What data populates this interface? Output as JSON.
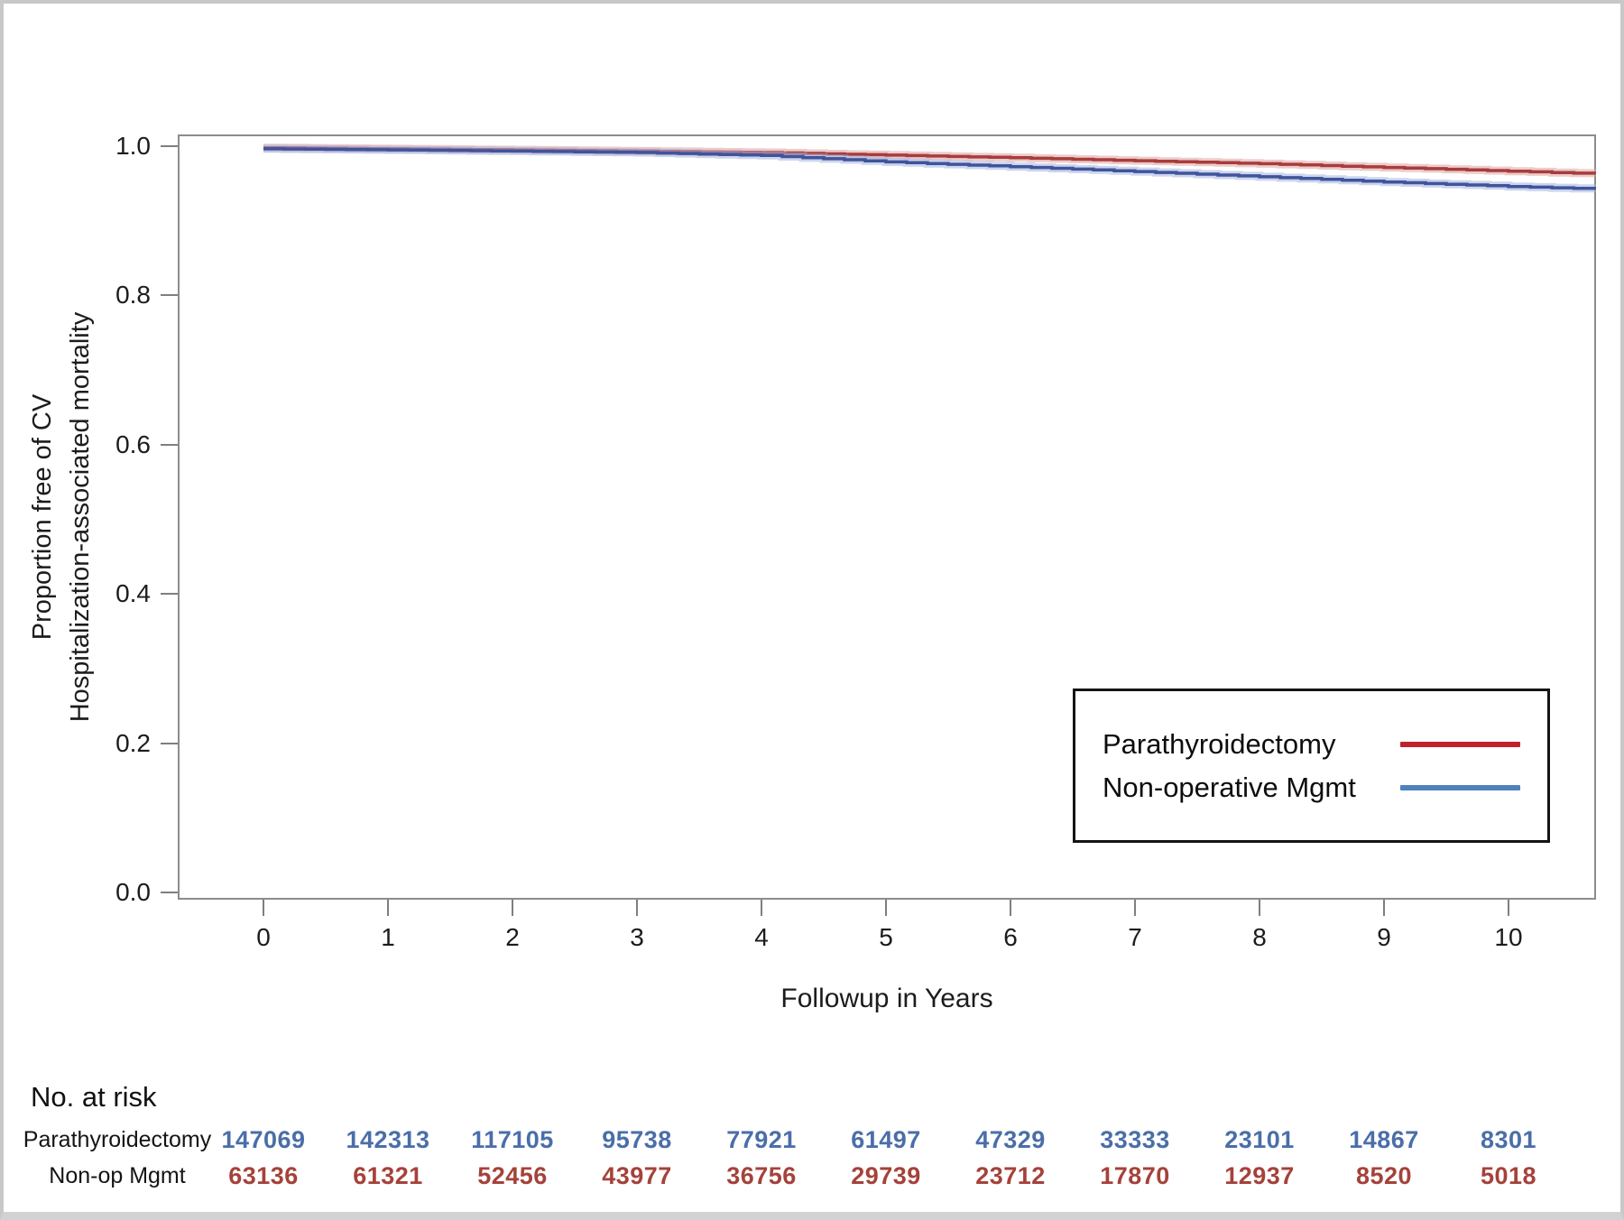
{
  "chart_data": {
    "type": "line",
    "subtype": "kaplan-meier-step",
    "title": "",
    "xlabel": "Followup in Years",
    "ylabel_line1": "Proportion free of CV",
    "ylabel_line2": "Hospitalization-associated mortality",
    "xlim": [
      -0.69,
      10.7
    ],
    "ylim": [
      0.0,
      1.02
    ],
    "x_ticks": [
      "0",
      "1",
      "2",
      "3",
      "4",
      "5",
      "6",
      "7",
      "8",
      "9",
      "10"
    ],
    "y_ticks": [
      "1.0",
      "0.8",
      "0.6",
      "0.4",
      "0.2",
      "0.0"
    ],
    "grid": "off",
    "legend_position": "inside-bottom-right",
    "series": [
      {
        "id": "parathyroidectomy",
        "name": "Parathyroidectomy",
        "color": "#a93c3c",
        "band_color": "#dfa0a0",
        "x": [
          0,
          1,
          2,
          3,
          4,
          5,
          6,
          7,
          8,
          9,
          10,
          10.7
        ],
        "y": [
          0.998,
          0.9965,
          0.995,
          0.9935,
          0.9915,
          0.988,
          0.9845,
          0.9805,
          0.9765,
          0.9715,
          0.9665,
          0.963
        ]
      },
      {
        "id": "non-operative",
        "name": "Non-operative Mgmt",
        "color": "#3f549c",
        "band_color": "#a3b3de",
        "x": [
          0,
          1,
          2,
          3,
          4,
          5,
          6,
          7,
          8,
          9,
          10,
          10.7
        ],
        "y": [
          0.9965,
          0.995,
          0.9935,
          0.9915,
          0.9875,
          0.979,
          0.9725,
          0.966,
          0.959,
          0.952,
          0.946,
          0.9425
        ]
      }
    ],
    "legend": {
      "entries": [
        {
          "label": "Parathyroidectomy",
          "color": "#c0222c"
        },
        {
          "label": "Non-operative Mgmt",
          "color": "#4f81bd"
        }
      ]
    }
  },
  "risk_table": {
    "title": "No. at risk",
    "rows": [
      {
        "label": "Parathyroidectomy",
        "color": "#4a6ea9",
        "values": [
          "147069",
          "142313",
          "117105",
          "95738",
          "77921",
          "61497",
          "47329",
          "33333",
          "23101",
          "14867",
          "8301"
        ]
      },
      {
        "label": "Non-op Mgmt",
        "color": "#a5423a",
        "values": [
          "63136",
          "61321",
          "52456",
          "43977",
          "36756",
          "29739",
          "23712",
          "17870",
          "12937",
          "8520",
          "5018"
        ]
      }
    ]
  }
}
